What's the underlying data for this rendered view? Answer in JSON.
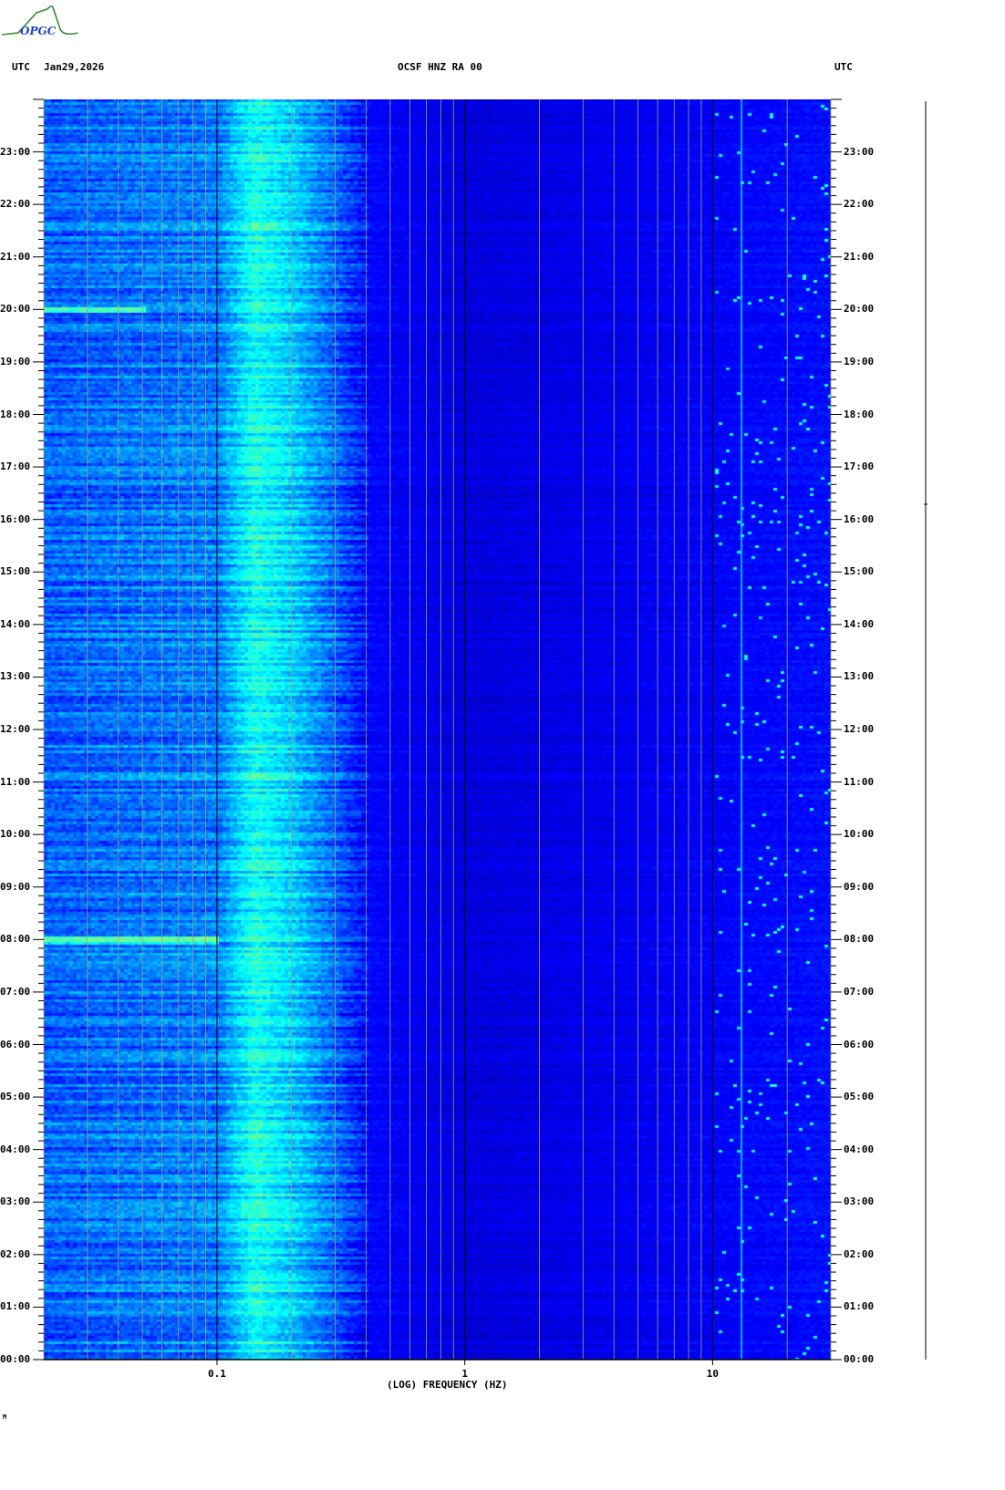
{
  "logo": {
    "text": "OPGC",
    "colors": {
      "curve": "#3a8a3a",
      "text": "#2040d0"
    }
  },
  "header": {
    "left_tz": "UTC",
    "date": "Jan29,2026",
    "title": "OCSF HNZ RA 00",
    "right_tz": "UTC"
  },
  "footer_mark": "M",
  "chart_data": {
    "type": "heatmap",
    "title": "OCSF HNZ RA 00",
    "xlabel": "(LOG) FREQUENCY (HZ)",
    "x_scale": "log",
    "xlim": [
      0.02,
      30
    ],
    "x_ticks": [
      {
        "value": 0.1,
        "label": "0.1"
      },
      {
        "value": 1,
        "label": "1"
      },
      {
        "value": 10,
        "label": "10"
      }
    ],
    "ylim_hours": [
      0,
      24
    ],
    "y_ticks": [
      "00:00",
      "01:00",
      "02:00",
      "03:00",
      "04:00",
      "05:00",
      "06:00",
      "07:00",
      "08:00",
      "09:00",
      "10:00",
      "11:00",
      "12:00",
      "13:00",
      "14:00",
      "15:00",
      "16:00",
      "17:00",
      "18:00",
      "19:00",
      "20:00",
      "21:00",
      "22:00",
      "23:00"
    ],
    "y_minor_tick_minutes": 10,
    "grid": "vertical log-frequency lines",
    "colormap": "jet (dark blue = low, cyan/yellow = high)",
    "relative_level_profile": [
      {
        "freq_hz": 0.02,
        "level": 0.22
      },
      {
        "freq_hz": 0.05,
        "level": 0.24
      },
      {
        "freq_hz": 0.1,
        "level": 0.25
      },
      {
        "freq_hz": 0.14,
        "level": 0.4
      },
      {
        "freq_hz": 0.2,
        "level": 0.33
      },
      {
        "freq_hz": 0.3,
        "level": 0.22
      },
      {
        "freq_hz": 0.4,
        "level": 0.13
      },
      {
        "freq_hz": 1,
        "level": 0.09
      },
      {
        "freq_hz": 10,
        "level": 0.12
      },
      {
        "freq_hz": 30,
        "level": 0.14
      }
    ],
    "notable_features": [
      {
        "label": "",
        "freq_hz": 13,
        "type": "persistent line"
      },
      {
        "time": "08:00",
        "freq_range_hz": [
          0.02,
          0.1
        ],
        "type": "broadband stripe"
      },
      {
        "time": "20:00",
        "freq_range_hz": [
          0.02,
          0.05
        ],
        "type": "broadband stripe"
      }
    ]
  }
}
